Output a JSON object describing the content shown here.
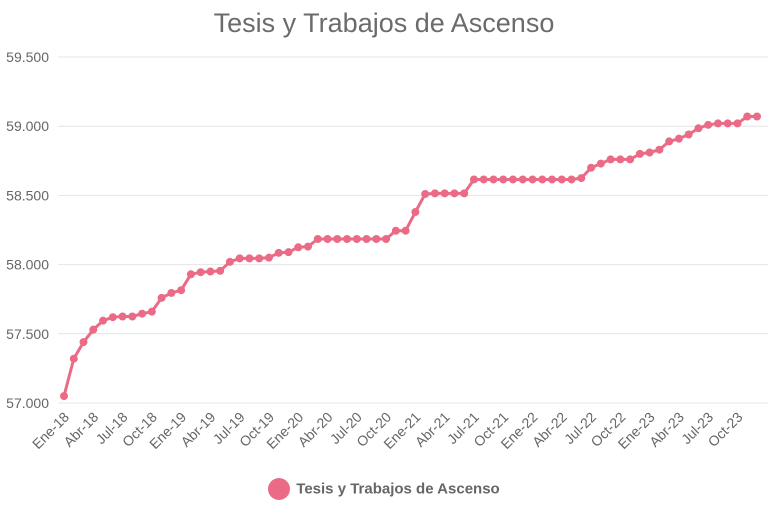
{
  "chart_data": {
    "type": "line",
    "title": "Tesis y Trabajos de Ascenso",
    "xlabel": "",
    "ylabel": "",
    "ylim": [
      57000,
      59500
    ],
    "y_ticks": [
      "57.000",
      "57.500",
      "58.000",
      "58.500",
      "59.000",
      "59.500"
    ],
    "y_tick_values": [
      57000,
      57500,
      58000,
      58500,
      59000,
      59500
    ],
    "x_tick_labels": [
      "Ene-18",
      "Abr-18",
      "Jul-18",
      "Oct-18",
      "Ene-19",
      "Abr-19",
      "Jul-19",
      "Oct-19",
      "Ene-20",
      "Abr-20",
      "Jul-20",
      "Oct-20",
      "Ene-21",
      "Abr-21",
      "Jul-21",
      "Oct-21",
      "Ene-22",
      "Abr-22",
      "Jul-22",
      "Oct-22",
      "Ene-23",
      "Abr-23",
      "Jul-23",
      "Oct-23"
    ],
    "x_tick_every": 3,
    "grid": true,
    "legend": "bottom",
    "color": "#eb6b87",
    "series": [
      {
        "name": "Tesis y Trabajos de Ascenso",
        "values": [
          57050,
          57320,
          57440,
          57530,
          57595,
          57620,
          57625,
          57625,
          57645,
          57660,
          57760,
          57795,
          57815,
          57930,
          57945,
          57950,
          57955,
          58020,
          58045,
          58045,
          58045,
          58050,
          58085,
          58090,
          58125,
          58130,
          58185,
          58185,
          58185,
          58185,
          58185,
          58185,
          58185,
          58185,
          58245,
          58245,
          58380,
          58510,
          58515,
          58515,
          58515,
          58515,
          58615,
          58615,
          58615,
          58615,
          58615,
          58615,
          58615,
          58615,
          58615,
          58615,
          58615,
          58625,
          58700,
          58730,
          58760,
          58760,
          58760,
          58800,
          58810,
          58830,
          58890,
          58910,
          58940,
          58985,
          59010,
          59020,
          59020,
          59020,
          59070,
          59070
        ]
      }
    ]
  }
}
